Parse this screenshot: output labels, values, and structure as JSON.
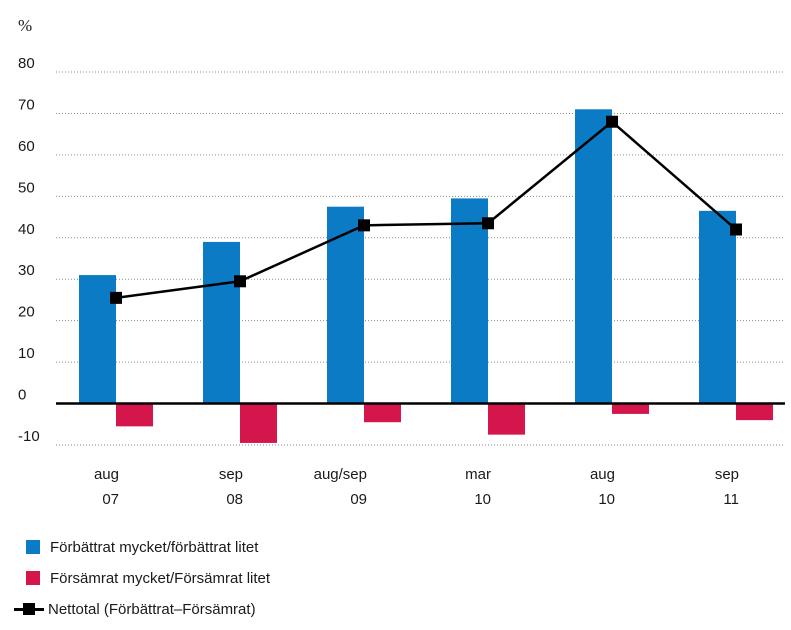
{
  "chart_data": {
    "type": "bar",
    "unit_label": "%",
    "categories": [
      [
        "aug",
        "07"
      ],
      [
        "sep",
        "08"
      ],
      [
        "aug/sep",
        "09"
      ],
      [
        "mar",
        "10"
      ],
      [
        "aug",
        "10"
      ],
      [
        "sep",
        "11"
      ]
    ],
    "series": [
      {
        "name": "Förbättrat mycket/förbättrat litet",
        "kind": "bar",
        "color": "#0a7bc4",
        "values": [
          31,
          39,
          47.5,
          49.5,
          71,
          46.5
        ]
      },
      {
        "name": "Försämrat mycket/Försämrat litet",
        "kind": "bar",
        "color": "#d4164c",
        "values": [
          -5.5,
          -9.5,
          -4.5,
          -7.5,
          -2.5,
          -4
        ]
      },
      {
        "name": "Nettotal (Förbättrat–Försämrat)",
        "kind": "line",
        "color": "#000000",
        "values": [
          25.5,
          29.5,
          43,
          43.5,
          68,
          42
        ]
      }
    ],
    "ylim": [
      -10,
      80
    ],
    "yticks": [
      -10,
      0,
      10,
      20,
      30,
      40,
      50,
      60,
      70,
      80
    ],
    "grid": true,
    "legend_position": "bottom-left"
  }
}
